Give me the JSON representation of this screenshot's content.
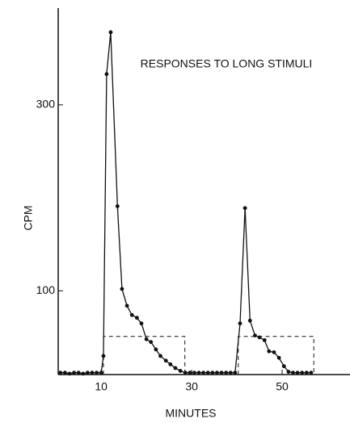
{
  "chart_data": {
    "type": "line",
    "title": "RESPONSES TO LONG STIMULI",
    "x_label": "MINUTES",
    "y_label": "CPM",
    "x": [
      1,
      2,
      3,
      4,
      5,
      6,
      7,
      8,
      9,
      10,
      10.5,
      11.2,
      12.1,
      13.6,
      14.6,
      15.7,
      16.8,
      17.9,
      18.9,
      20,
      21,
      22.1,
      23.1,
      24.3,
      25.3,
      26.4,
      27.5,
      28.6,
      29.6,
      30.6,
      31.6,
      32.6,
      33.6,
      34.6,
      35.6,
      36.6,
      37.6,
      38.6,
      39.6,
      40.7,
      41.8,
      42.9,
      44,
      45,
      46.1,
      47.1,
      48.2,
      49.3,
      50.4,
      51.4,
      52.4,
      53.4,
      54.4,
      55.4,
      56.4
    ],
    "series": [
      {
        "color": "#111111",
        "values": [
          12,
          12,
          11,
          12,
          12,
          11,
          12,
          12,
          12,
          12,
          30,
          333,
          378,
          191,
          102,
          84,
          74,
          71,
          65,
          48,
          45,
          37,
          30,
          25,
          21,
          17,
          14,
          12,
          12,
          12,
          12,
          12,
          12,
          12,
          12,
          12,
          12,
          12,
          12,
          65,
          189,
          68,
          52,
          50,
          47,
          35,
          34,
          28,
          19,
          13,
          12,
          12,
          12,
          12,
          12
        ]
      }
    ],
    "stimuli": [
      {
        "start": 10.5,
        "end": 28.5,
        "level": 51
      },
      {
        "start": 40.3,
        "end": 57,
        "level": 51
      }
    ],
    "xlim": [
      0.5,
      65
    ],
    "ylim": [
      10,
      404
    ],
    "xticks": [
      10,
      30,
      50
    ],
    "yticks": [
      100,
      300
    ]
  }
}
